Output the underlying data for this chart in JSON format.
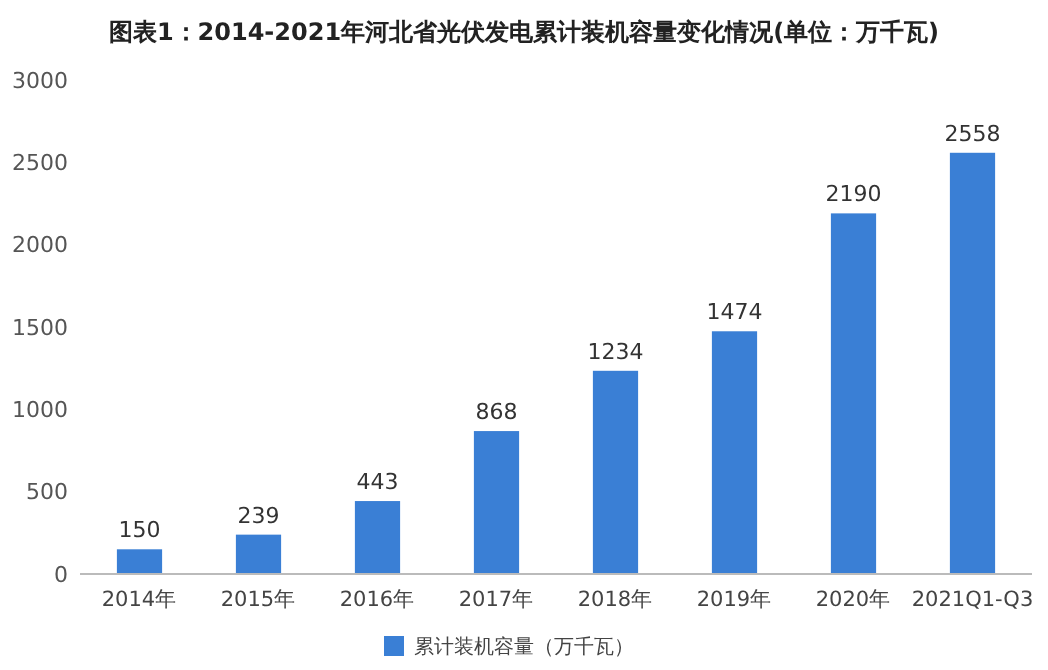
{
  "chart_data": {
    "type": "bar",
    "title": "图表1：2014-2021年河北省光伏发电累计装机容量变化情况(单位：万千瓦)",
    "categories": [
      "2014年",
      "2015年",
      "2016年",
      "2017年",
      "2018年",
      "2019年",
      "2020年",
      "2021Q1-Q3"
    ],
    "series": [
      {
        "name": "累计装机容量（万千瓦）",
        "color": "#3a7fd5",
        "values": [
          150,
          239,
          443,
          868,
          1234,
          1474,
          2190,
          2558
        ]
      }
    ],
    "ylim": [
      0,
      3000
    ],
    "yticks": [
      0,
      500,
      1000,
      1500,
      2000,
      2500,
      3000
    ],
    "data_labels": true,
    "legend": "bottom"
  }
}
